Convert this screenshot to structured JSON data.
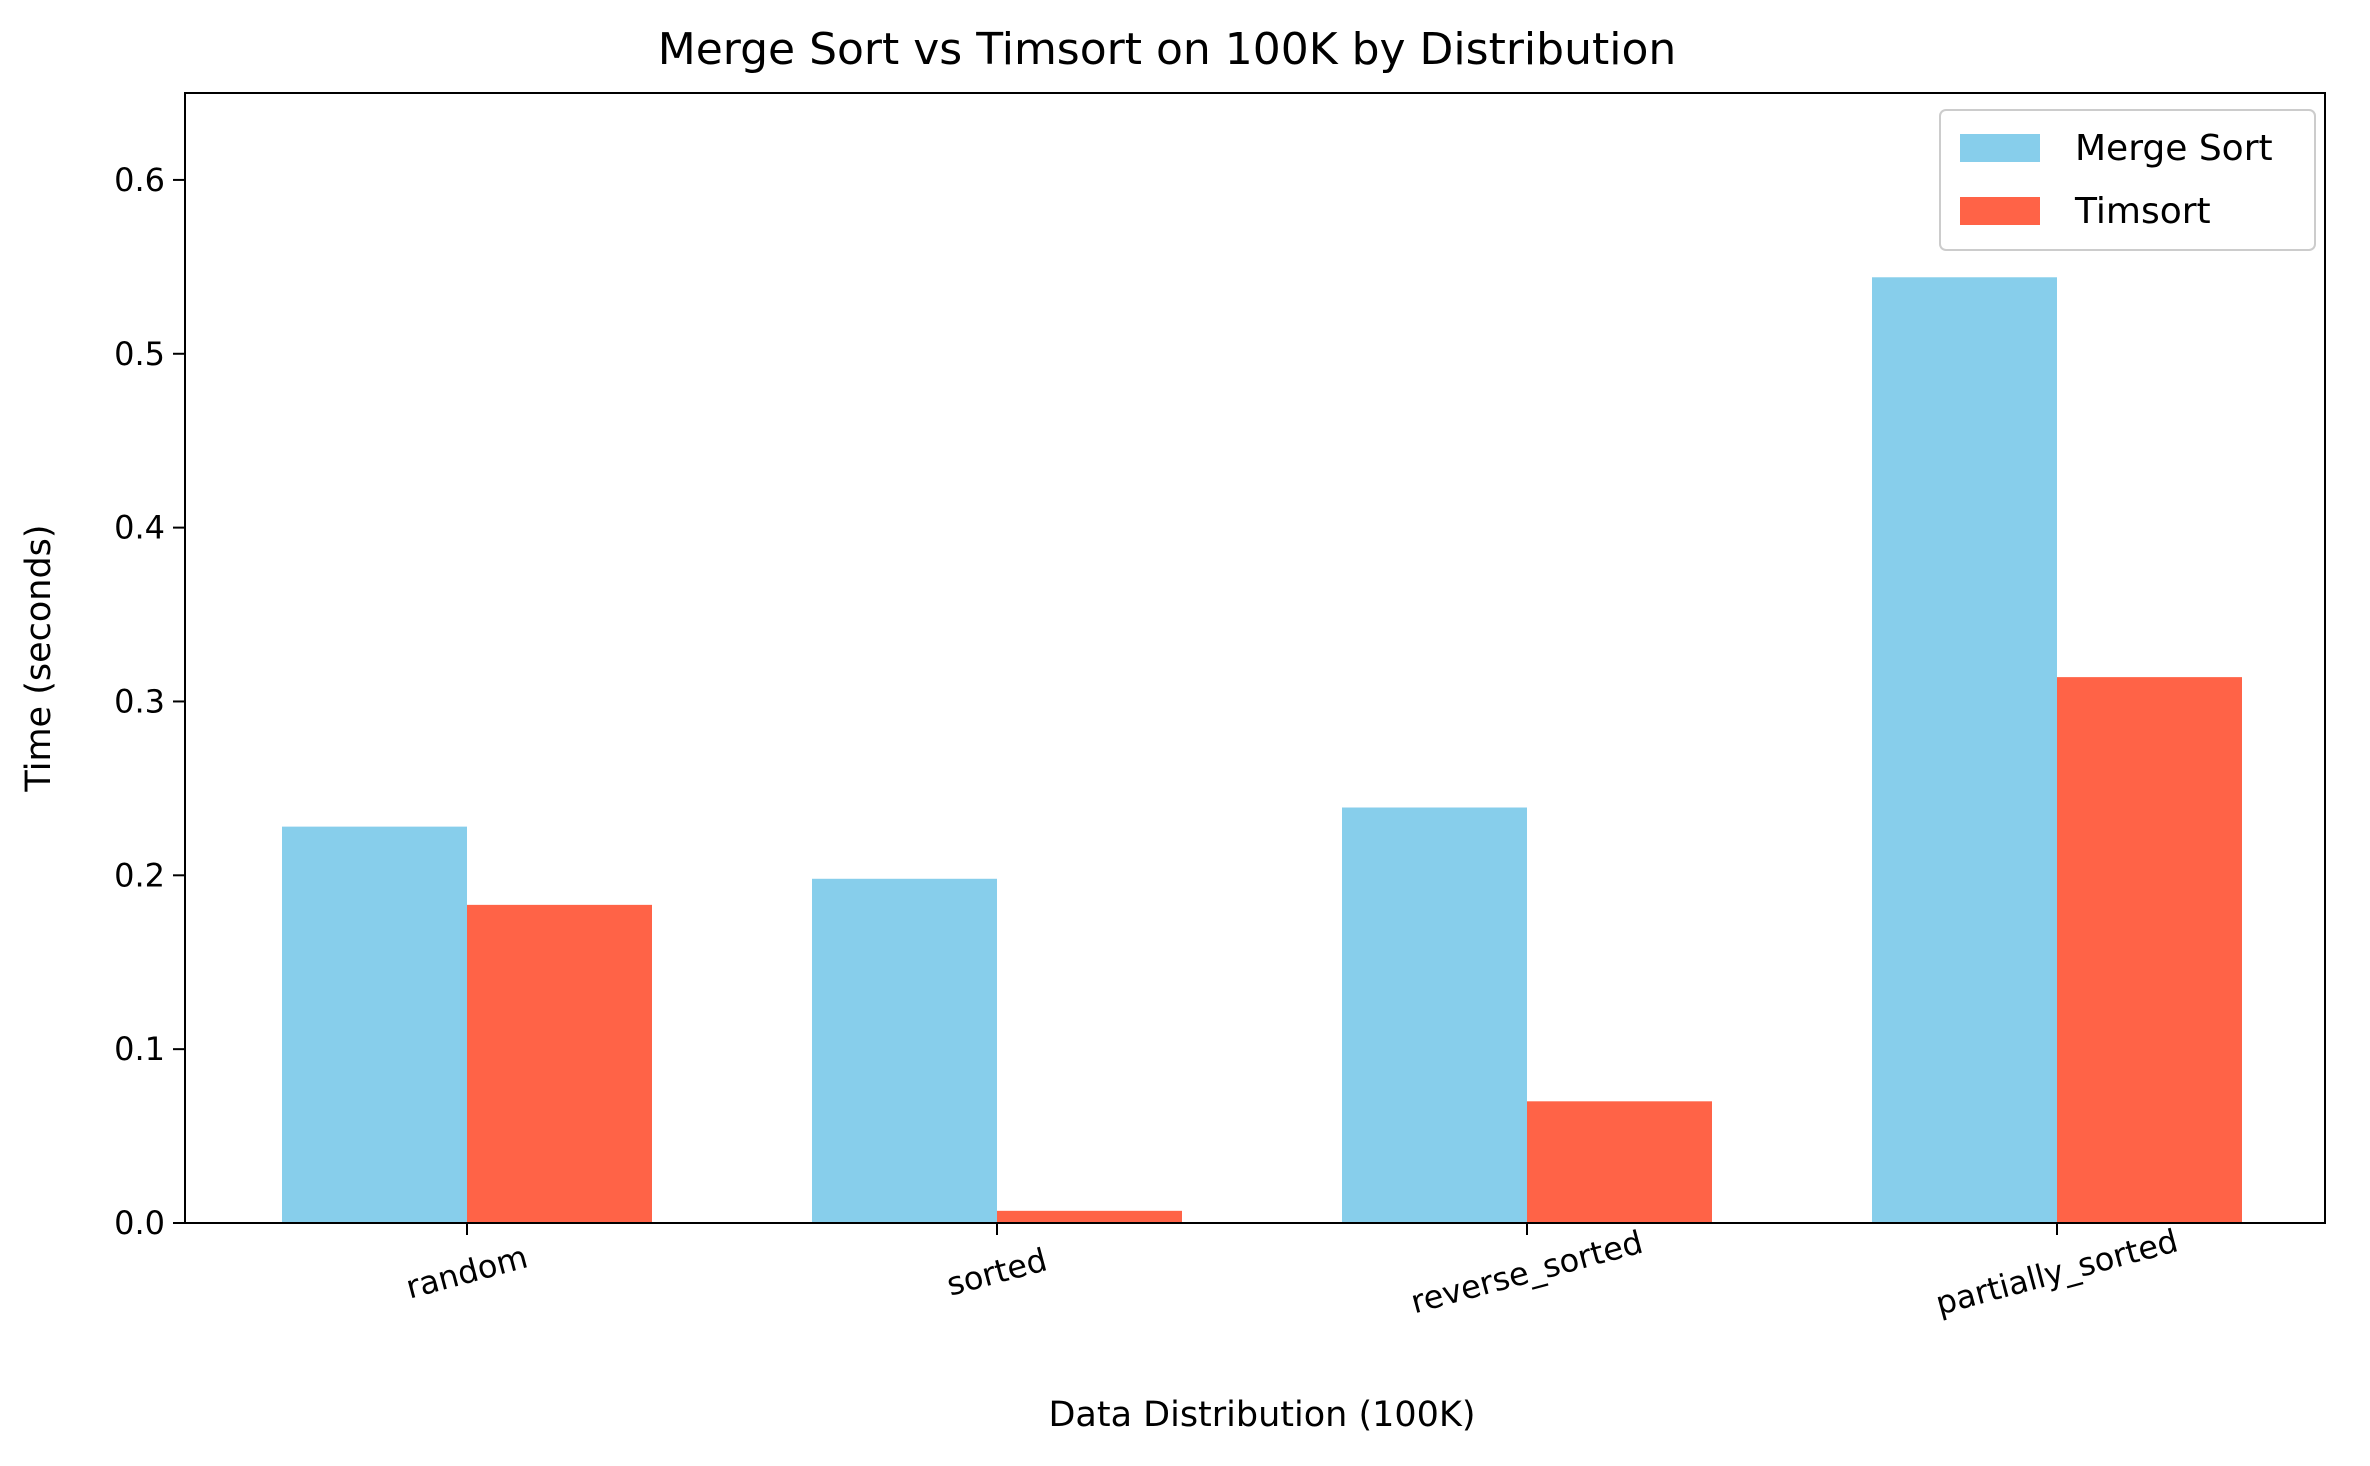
{
  "chart_data": {
    "type": "bar",
    "title": "Merge Sort vs Timsort on 100K by Distribution",
    "xlabel": "Data Distribution (100K)",
    "ylabel": "Time (seconds)",
    "categories": [
      "random",
      "sorted",
      "reverse_sorted",
      "partially_sorted"
    ],
    "series": [
      {
        "name": "Merge Sort",
        "color": "#87CEEB",
        "values": [
          0.228,
          0.198,
          0.239,
          0.544
        ]
      },
      {
        "name": "Timsort",
        "color": "#FF6347",
        "values": [
          0.183,
          0.007,
          0.07,
          0.314
        ]
      }
    ],
    "ylim": [
      0,
      0.65
    ],
    "yticks": [
      "0.0",
      "0.1",
      "0.2",
      "0.3",
      "0.4",
      "0.5",
      "0.6"
    ],
    "grid": false,
    "legend_position": "top-right"
  }
}
